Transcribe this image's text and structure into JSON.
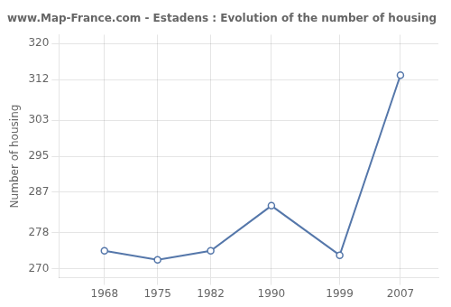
{
  "chart_data": {
    "type": "line",
    "title": "www.Map-France.com - Estadens : Evolution of the number of housing",
    "ylabel": "Number of housing",
    "x": [
      1968,
      1975,
      1982,
      1990,
      1999,
      2007
    ],
    "values": [
      274,
      272,
      274,
      284,
      273,
      313
    ],
    "color": "#5577aa",
    "marker": "circle",
    "xlim": [
      1962,
      2012
    ],
    "xticks": [
      1968,
      1975,
      1982,
      1990,
      1999,
      2007
    ],
    "ylim": [
      268,
      322
    ],
    "yticks": [
      270,
      278,
      287,
      295,
      303,
      312,
      320
    ],
    "grid": true
  }
}
